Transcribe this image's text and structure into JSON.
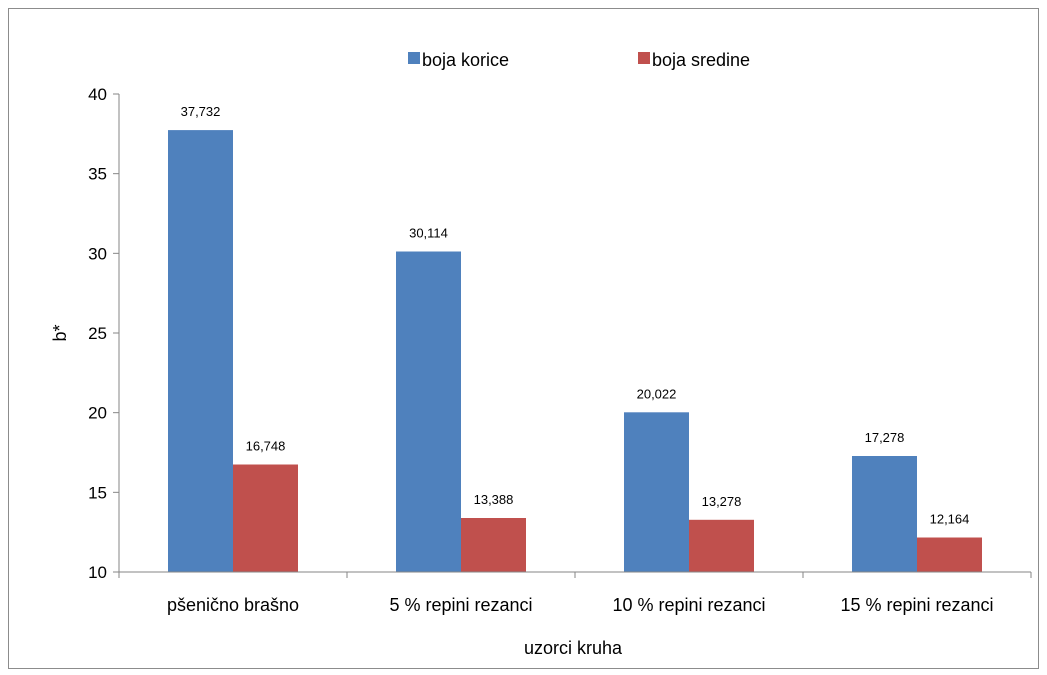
{
  "chart_data": {
    "type": "bar",
    "title": "",
    "xlabel": "uzorci kruha",
    "ylabel": "b*",
    "ylim": [
      10,
      40
    ],
    "yticks": [
      10,
      15,
      20,
      25,
      30,
      35,
      40
    ],
    "categories": [
      "pšenično brašno",
      "5 % repini rezanci",
      "10 % repini rezanci",
      "15 % repini rezanci"
    ],
    "series": [
      {
        "name": "boja korice",
        "color": "#4f81bd",
        "values": [
          37.732,
          30.114,
          20.022,
          17.278
        ],
        "labels": [
          "37,732",
          "30,114",
          "20,022",
          "17,278"
        ]
      },
      {
        "name": "boja sredine",
        "color": "#c0504d",
        "values": [
          16.748,
          13.388,
          13.278,
          12.164
        ],
        "labels": [
          "16,748",
          "13,388",
          "13,278",
          "12,164"
        ]
      }
    ],
    "legend": "top",
    "grid": false
  }
}
